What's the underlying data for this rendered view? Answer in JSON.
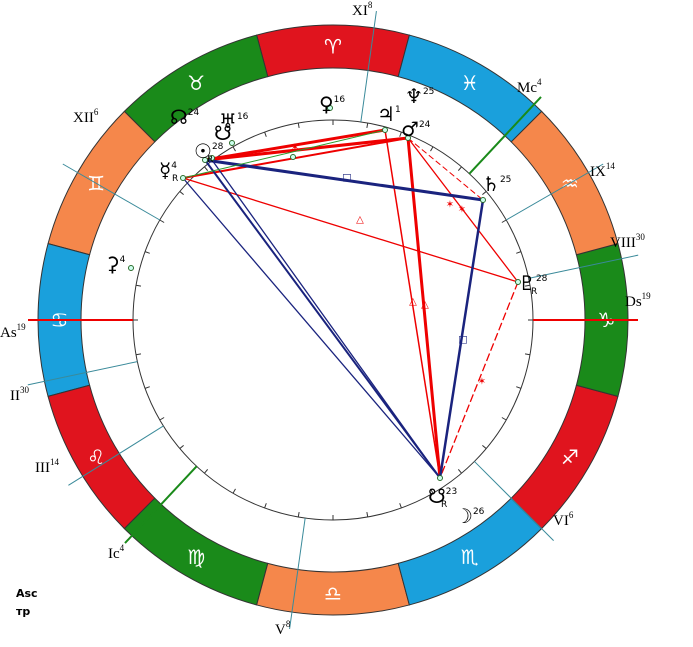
{
  "signs": [
    "♈",
    "♉",
    "♊",
    "♋",
    "♌",
    "♍",
    "♎",
    "♏",
    "♐",
    "♑",
    "♒",
    "♓"
  ],
  "houses": [
    {
      "label": "As",
      "degree": 19
    },
    {
      "label": "II",
      "degree": 30
    },
    {
      "label": "III",
      "degree": 14
    },
    {
      "label": "Ic",
      "degree": 4
    },
    {
      "label": "V",
      "degree": 8
    },
    {
      "label": "VI",
      "degree": 6
    },
    {
      "label": "Ds",
      "degree": 19
    },
    {
      "label": "VIII",
      "degree": 30
    },
    {
      "label": "IX",
      "degree": 14
    },
    {
      "label": "Mc",
      "degree": 4
    },
    {
      "label": "XI",
      "degree": 8
    },
    {
      "label": "XII",
      "degree": 6
    }
  ],
  "planets": [
    {
      "glyph": "☊",
      "degree": 24
    },
    {
      "glyph": "♅",
      "degree": 16
    },
    {
      "glyph": "☉",
      "degree": 28,
      "retro": "R"
    },
    {
      "glyph": "☋"
    },
    {
      "glyph": "♀",
      "degree": 16
    },
    {
      "glyph": "♃",
      "degree": 1
    },
    {
      "glyph": "♆",
      "degree": 25
    },
    {
      "glyph": "♂",
      "degree": 24
    },
    {
      "glyph": "♄",
      "degree": 25
    },
    {
      "glyph": "♇",
      "degree": 28,
      "retro": "R"
    },
    {
      "glyph": "☿",
      "degree": 4,
      "retro": "R"
    },
    {
      "glyph": "⚳",
      "degree": 4
    },
    {
      "glyph": "☋",
      "degree": 23,
      "retro": "R"
    },
    {
      "glyph": "☽",
      "degree": 26
    }
  ],
  "aspect_marks": [
    "□",
    "□",
    "△",
    "△",
    "△",
    "✶",
    "✶",
    "✶",
    "✶"
  ],
  "footer": [
    "Asc",
    "тр"
  ]
}
